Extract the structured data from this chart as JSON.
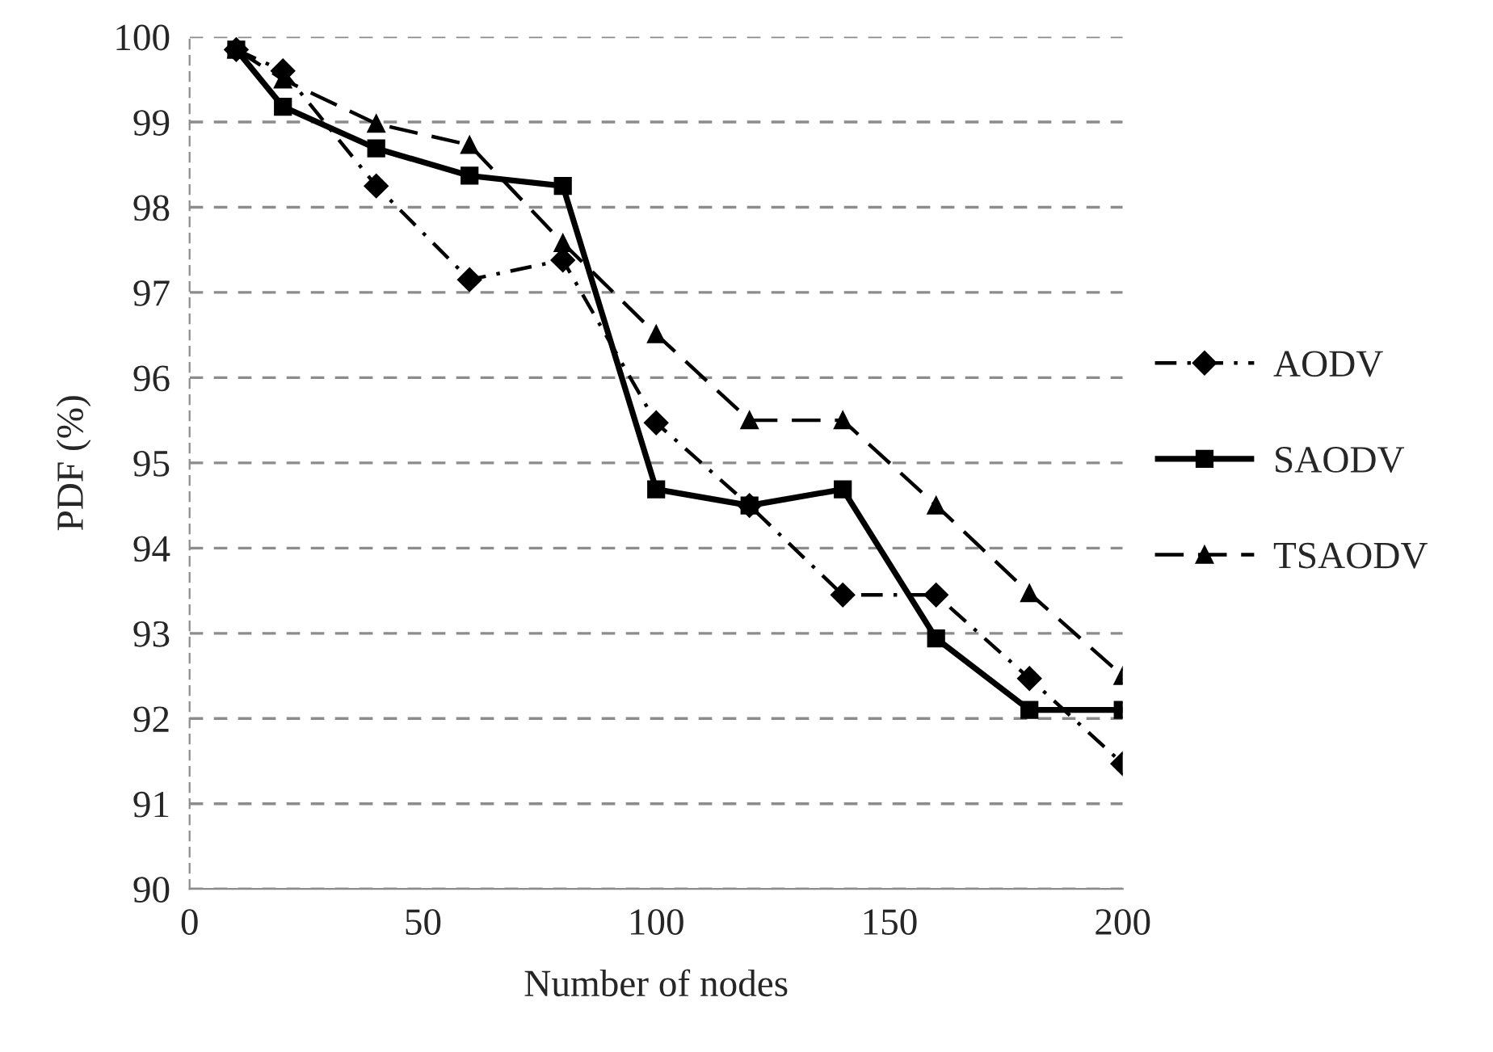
{
  "chart_data": {
    "type": "line",
    "xlabel": "Number of nodes",
    "ylabel": "PDF (%)",
    "x": [
      10,
      20,
      40,
      60,
      80,
      100,
      120,
      140,
      160,
      180,
      200
    ],
    "series": [
      {
        "name": "AODV",
        "color": "#000000",
        "marker": "diamond",
        "line_style": "dashdot",
        "values": [
          99.85,
          99.6,
          98.25,
          97.15,
          97.38,
          95.47,
          94.5,
          93.45,
          93.45,
          92.47,
          91.47
        ]
      },
      {
        "name": "SAODV",
        "color": "#000000",
        "marker": "square",
        "line_style": "solid",
        "values": [
          99.85,
          99.18,
          98.69,
          98.37,
          98.25,
          94.69,
          94.5,
          94.69,
          92.94,
          92.1,
          92.1
        ]
      },
      {
        "name": "TSAODV",
        "color": "#000000",
        "marker": "triangle",
        "line_style": "dashed",
        "values": [
          99.85,
          99.5,
          98.98,
          98.73,
          97.58,
          96.51,
          95.5,
          95.5,
          94.5,
          93.47,
          92.5
        ]
      }
    ],
    "xlim": [
      0,
      200
    ],
    "xticks": [
      0,
      50,
      100,
      150,
      200
    ],
    "ylim": [
      90,
      100
    ],
    "yticks": [
      90,
      91,
      92,
      93,
      94,
      95,
      96,
      97,
      98,
      99,
      100
    ],
    "grid": "y",
    "legend": "right"
  }
}
